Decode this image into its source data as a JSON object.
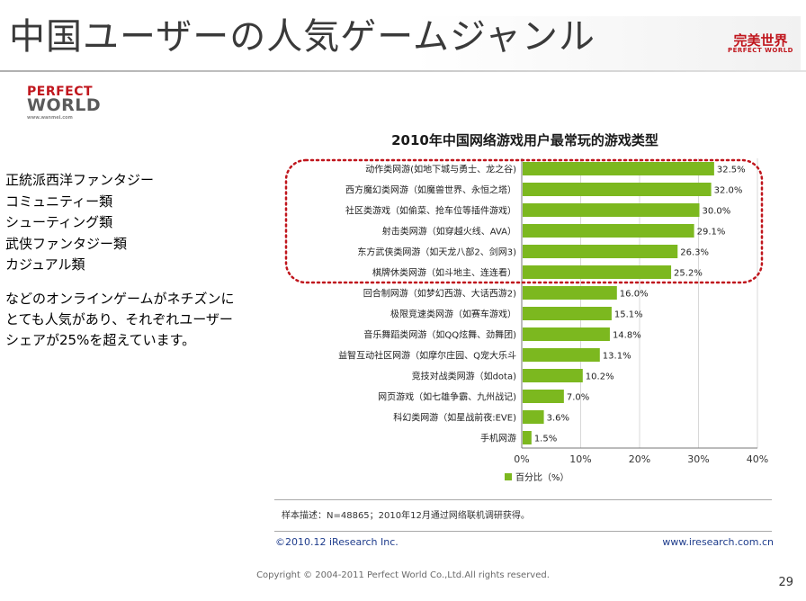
{
  "slide": {
    "title": "中国ユーザーの人気ゲームジャンル",
    "brand_cn": "完美世界",
    "brand_en": "PERFECT WORLD",
    "logo_line1": "PERFECT",
    "logo_line2": "WORLD",
    "logo_url": "www.wanmei.com",
    "genres": [
      "正統派西洋ファンタジー",
      "コミュニティー類",
      "シューティング類",
      "武侠ファンタジー類",
      "カジュアル類"
    ],
    "paragraph": [
      "などのオンラインゲームがネチズンに",
      "とても人気があり、それぞれユーザー",
      "シェアが25%を超えています。"
    ],
    "copyright": "Copyright © 2004-2011  Perfect World Co.,Ltd.All rights reserved.",
    "page_number": "29"
  },
  "chart_data": {
    "type": "bar",
    "orientation": "horizontal",
    "title": "2010年中国网络游戏用户最常玩的游戏类型",
    "categories": [
      "动作类网游(如地下城与勇士、龙之谷)",
      "西方魔幻类网游（如魔兽世界、永恒之塔）",
      "社区类游戏（如偷菜、抢车位等插件游戏）",
      "射击类网游（如穿越火线、AVA）",
      "东方武侠类网游（如天龙八部2、剑网3)",
      "棋牌休类网游（如斗地主、连连看）",
      "回合制网游（如梦幻西游、大话西游2)",
      "极限竞速类网游（如赛车游戏）",
      "音乐舞蹈类网游（如QQ炫舞、劲舞团)",
      "益智互动社区网游（如摩尔庄园、Q宠大乐斗",
      "竞技对战类网游（如dota)",
      "网页游戏（如七雄争霸、九州战记)",
      "科幻类网游（如星战前夜:EVE)",
      "手机网游"
    ],
    "series": [
      {
        "name": "百分比（%）",
        "values": [
          32.5,
          32.0,
          30.0,
          29.1,
          26.3,
          25.2,
          16.0,
          15.1,
          14.8,
          13.1,
          10.2,
          7.0,
          3.6,
          1.5
        ],
        "labels": [
          "32.5%",
          "32.0%",
          "30.0%",
          "29.1%",
          "26.3%",
          "25.2%",
          "16.0%",
          "15.1%",
          "14.8%",
          "13.1%",
          "10.2%",
          "7.0%",
          "3.6%",
          "1.5%"
        ]
      }
    ],
    "xlim": [
      0,
      40
    ],
    "xticks": [
      "0%",
      "10%",
      "20%",
      "30%",
      "40%"
    ],
    "grid": true,
    "legend": "bottom",
    "bar_color": "#7cb81f",
    "highlight": "top 6 categories circled with red dotted outline",
    "highlight_color": "#c0161d",
    "sample_note": "样本描述：N=48865；2010年12月通过网络联机调研获得。",
    "source_left": "©2010.12 iResearch Inc.",
    "source_right": "www.iresearch.com.cn"
  }
}
